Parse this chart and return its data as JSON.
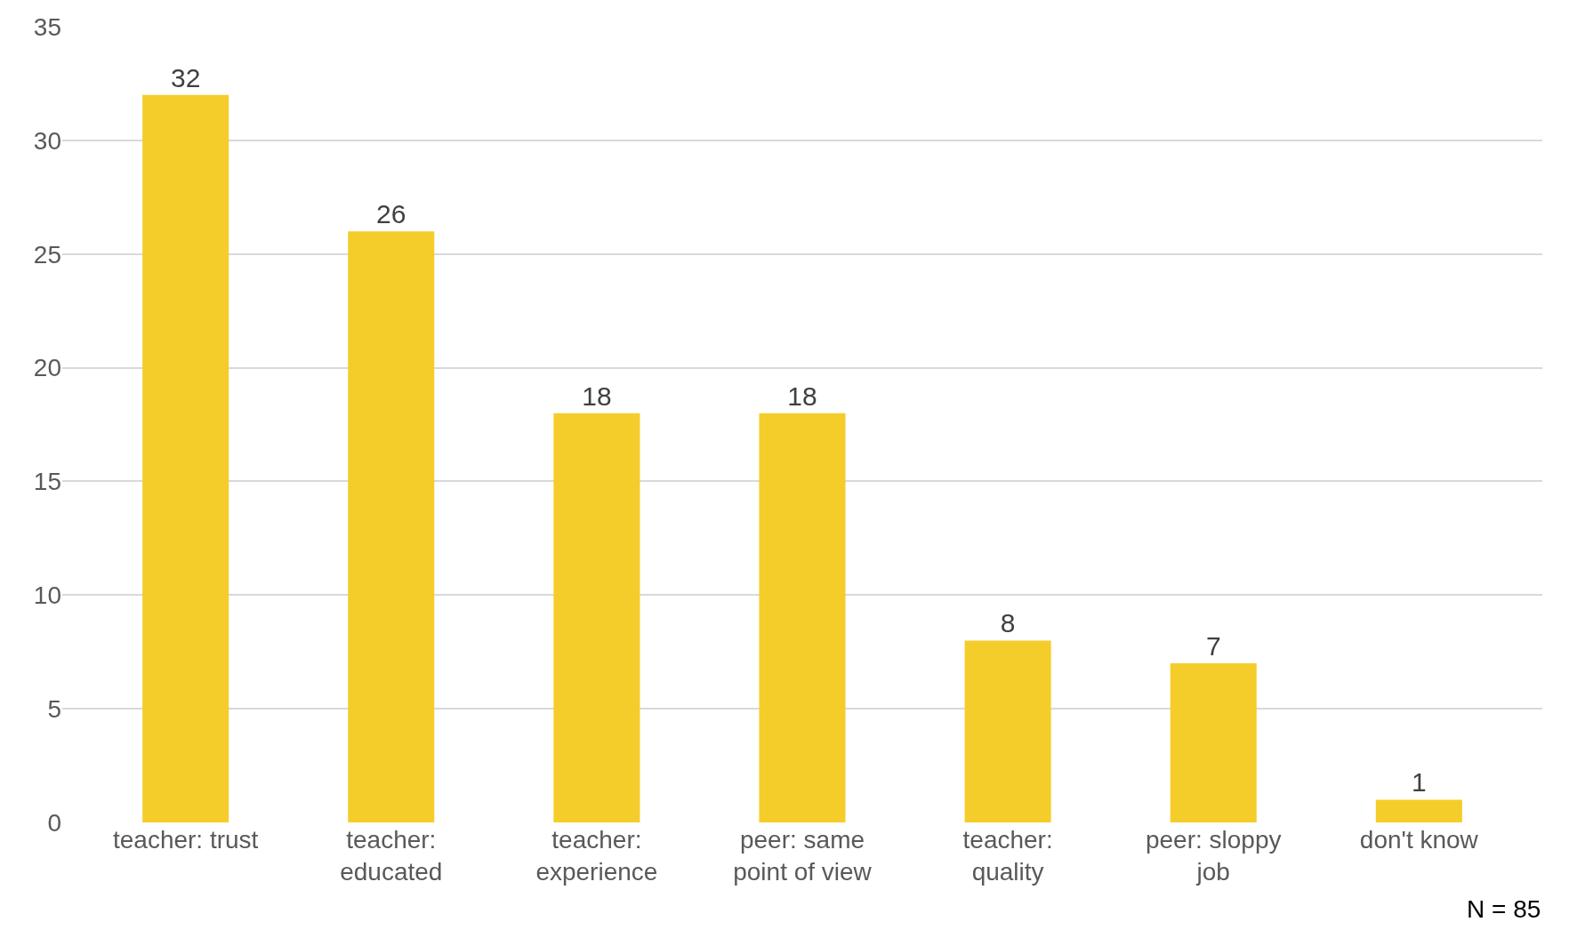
{
  "chart_data": {
    "type": "bar",
    "categories": [
      "teacher: trust",
      "teacher: educated",
      "teacher: experience",
      "peer: same point of view",
      "teacher: quality",
      "peer: sloppy job",
      "don't know"
    ],
    "values": [
      32,
      26,
      18,
      18,
      8,
      7,
      1
    ],
    "color": "#f5cd2a",
    "ylim": [
      0,
      35
    ],
    "yticks": [
      0,
      5,
      10,
      15,
      20,
      25,
      30,
      35
    ],
    "grid": "y",
    "data_labels": true,
    "annotations": [
      "N = 85"
    ]
  }
}
